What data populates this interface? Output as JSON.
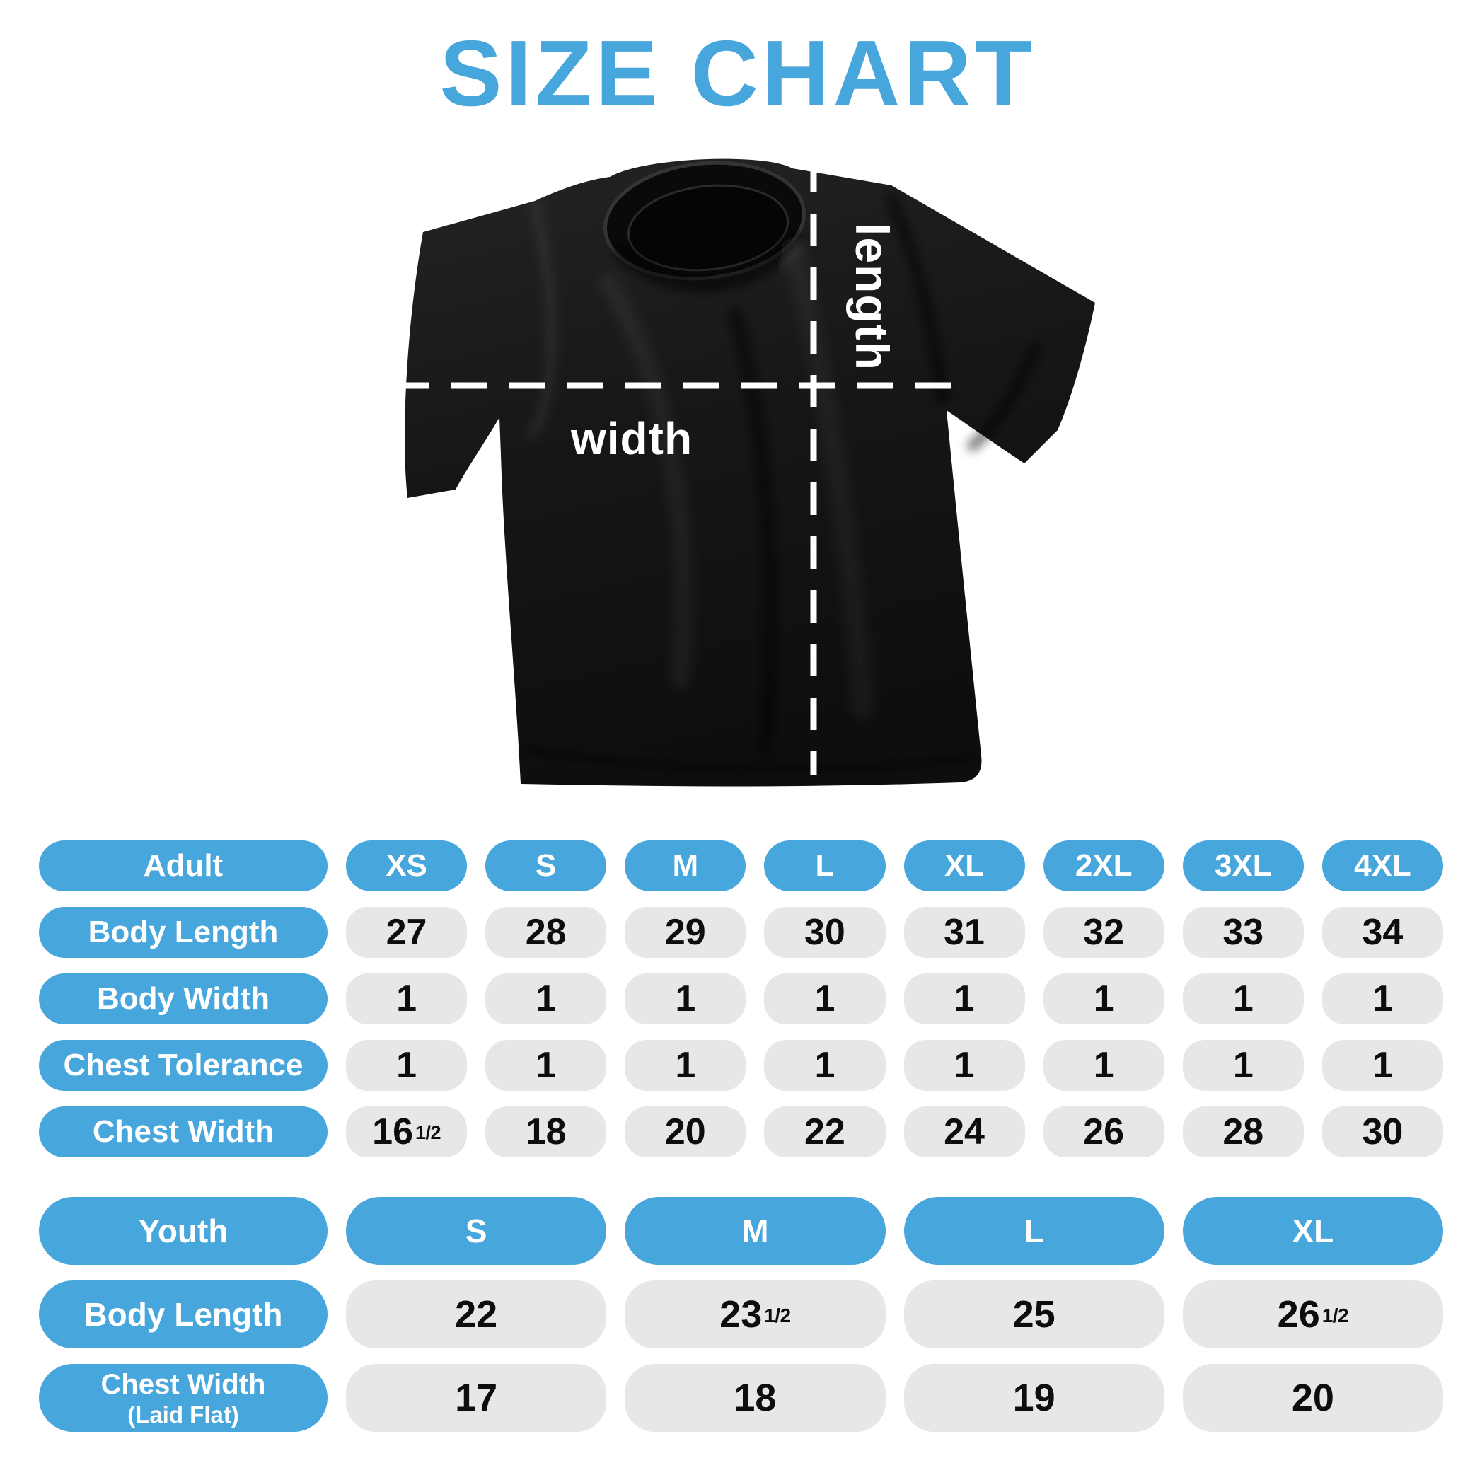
{
  "title": "SIZE CHART",
  "colors": {
    "accent": "#47A6DB",
    "value_cell_bg": "#E5E7E8",
    "value_text": "#0d0d0d",
    "label_text": "#ffffff",
    "shirt": "#141414"
  },
  "diagram": {
    "shirt_name": "black-tshirt-flat-lay",
    "length_label": "length",
    "width_label": "width"
  },
  "adult_table": {
    "header": [
      "Adult",
      "XS",
      "S",
      "M",
      "L",
      "XL",
      "2XL",
      "3XL",
      "4XL"
    ],
    "rows": [
      {
        "label": "Body Length",
        "values": [
          "27",
          "28",
          "29",
          "30",
          "31",
          "32",
          "33",
          "34"
        ]
      },
      {
        "label": "Body Width",
        "values": [
          "1",
          "1",
          "1",
          "1",
          "1",
          "1",
          "1",
          "1"
        ]
      },
      {
        "label": "Chest Tolerance",
        "values": [
          "1",
          "1",
          "1",
          "1",
          "1",
          "1",
          "1",
          "1"
        ]
      },
      {
        "label": "Chest Width",
        "values": [
          "16½",
          "18",
          "20",
          "22",
          "24",
          "26",
          "28",
          "30"
        ]
      }
    ]
  },
  "youth_table": {
    "header": [
      "Youth",
      "S",
      "M",
      "L",
      "XL"
    ],
    "rows": [
      {
        "label": "Body Length",
        "values": [
          "22",
          "23½",
          "25",
          "26½"
        ]
      },
      {
        "label": "Chest Width",
        "label_sub": "(Laid Flat)",
        "values": [
          "17",
          "18",
          "19",
          "20"
        ]
      }
    ]
  }
}
